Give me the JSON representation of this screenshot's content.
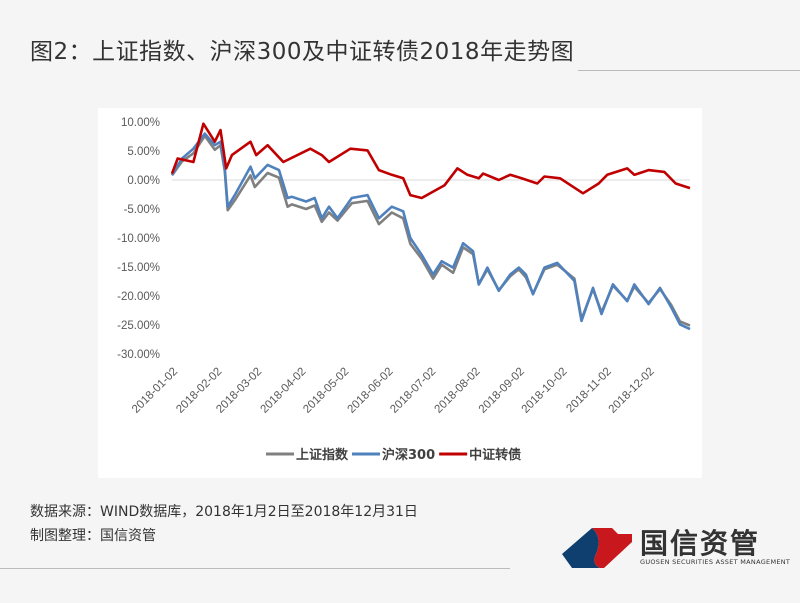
{
  "title": "图2：上证指数、沪深300及中证转债2018年走势图",
  "source_line": "数据来源：WIND数据库，2018年1月2日至2018年12月31日",
  "made_by_line": "制图整理：国信资管",
  "logo": {
    "name": "国信资管",
    "subtitle": "GUOSEN SECURITIES ASSET MANAGEMENT",
    "colors": [
      "#0f3f6e",
      "#c9171e"
    ]
  },
  "chart_data": {
    "type": "line",
    "xlabel": "",
    "ylabel": "",
    "xlim": [
      "2018-01-02",
      "2018-12-31"
    ],
    "ylim": [
      -30,
      10
    ],
    "y_ticks": [
      "10.00%",
      "5.00%",
      "0.00%",
      "-5.00%",
      "-10.00%",
      "-15.00%",
      "-20.00%",
      "-25.00%",
      "-30.00%"
    ],
    "y_tick_values": [
      10,
      5,
      0,
      -5,
      -10,
      -15,
      -20,
      -25,
      -30
    ],
    "x_ticks": [
      "2018-01-02",
      "2018-02-02",
      "2018-03-02",
      "2018-04-02",
      "2018-05-02",
      "2018-06-02",
      "2018-07-02",
      "2018-08-02",
      "2018-09-02",
      "2018-10-02",
      "2018-11-02",
      "2018-12-02"
    ],
    "grid": false,
    "zero_line": true,
    "legend_placement": "bottom",
    "series": [
      {
        "name": "上证指数",
        "color": "#808080",
        "points": [
          [
            "2018-01-02",
            0.8
          ],
          [
            "2018-01-09",
            3.2
          ],
          [
            "2018-01-17",
            4.6
          ],
          [
            "2018-01-25",
            7.6
          ],
          [
            "2018-02-01",
            5.2
          ],
          [
            "2018-02-05",
            6.0
          ],
          [
            "2018-02-08",
            1.5
          ],
          [
            "2018-02-10",
            -5.2
          ],
          [
            "2018-02-15",
            -3.5
          ],
          [
            "2018-02-26",
            0.8
          ],
          [
            "2018-03-01",
            -1.2
          ],
          [
            "2018-03-10",
            1.2
          ],
          [
            "2018-03-18",
            0.4
          ],
          [
            "2018-03-24",
            -4.6
          ],
          [
            "2018-03-27",
            -4.2
          ],
          [
            "2018-04-06",
            -5.0
          ],
          [
            "2018-04-12",
            -4.4
          ],
          [
            "2018-04-17",
            -7.2
          ],
          [
            "2018-04-22",
            -5.6
          ],
          [
            "2018-04-28",
            -7.0
          ],
          [
            "2018-05-08",
            -4.0
          ],
          [
            "2018-05-19",
            -3.6
          ],
          [
            "2018-05-27",
            -7.6
          ],
          [
            "2018-06-05",
            -5.6
          ],
          [
            "2018-06-13",
            -6.6
          ],
          [
            "2018-06-18",
            -11.0
          ],
          [
            "2018-06-26",
            -13.6
          ],
          [
            "2018-07-04",
            -17.0
          ],
          [
            "2018-07-10",
            -14.6
          ],
          [
            "2018-07-18",
            -16.0
          ],
          [
            "2018-07-25",
            -11.6
          ],
          [
            "2018-08-01",
            -12.8
          ],
          [
            "2018-08-05",
            -18.0
          ],
          [
            "2018-08-11",
            -15.4
          ],
          [
            "2018-08-19",
            -19.0
          ],
          [
            "2018-08-27",
            -16.6
          ],
          [
            "2018-09-02",
            -15.4
          ],
          [
            "2018-09-07",
            -16.8
          ],
          [
            "2018-09-12",
            -19.6
          ],
          [
            "2018-09-20",
            -15.4
          ],
          [
            "2018-09-29",
            -14.6
          ],
          [
            "2018-10-11",
            -17.0
          ],
          [
            "2018-10-16",
            -24.0
          ],
          [
            "2018-10-24",
            -18.8
          ],
          [
            "2018-10-30",
            -22.8
          ],
          [
            "2018-11-07",
            -18.2
          ],
          [
            "2018-11-17",
            -20.8
          ],
          [
            "2018-11-22",
            -18.4
          ],
          [
            "2018-12-02",
            -21.2
          ],
          [
            "2018-12-10",
            -18.8
          ],
          [
            "2018-12-18",
            -21.6
          ],
          [
            "2018-12-24",
            -24.4
          ],
          [
            "2018-12-31",
            -25.1
          ]
        ]
      },
      {
        "name": "沪深300",
        "color": "#4f81bd",
        "points": [
          [
            "2018-01-02",
            0.9
          ],
          [
            "2018-01-09",
            3.7
          ],
          [
            "2018-01-17",
            5.4
          ],
          [
            "2018-01-25",
            8.0
          ],
          [
            "2018-02-01",
            6.0
          ],
          [
            "2018-02-05",
            6.6
          ],
          [
            "2018-02-08",
            2.0
          ],
          [
            "2018-02-10",
            -4.6
          ],
          [
            "2018-02-15",
            -2.6
          ],
          [
            "2018-02-26",
            2.3
          ],
          [
            "2018-03-01",
            0.3
          ],
          [
            "2018-03-10",
            2.6
          ],
          [
            "2018-03-18",
            1.7
          ],
          [
            "2018-03-24",
            -3.1
          ],
          [
            "2018-03-27",
            -2.9
          ],
          [
            "2018-04-06",
            -3.7
          ],
          [
            "2018-04-12",
            -3.1
          ],
          [
            "2018-04-17",
            -6.6
          ],
          [
            "2018-04-22",
            -4.6
          ],
          [
            "2018-04-28",
            -6.6
          ],
          [
            "2018-05-08",
            -3.1
          ],
          [
            "2018-05-19",
            -2.6
          ],
          [
            "2018-05-27",
            -6.6
          ],
          [
            "2018-06-05",
            -4.6
          ],
          [
            "2018-06-13",
            -5.4
          ],
          [
            "2018-06-18",
            -10.0
          ],
          [
            "2018-06-26",
            -12.9
          ],
          [
            "2018-07-04",
            -16.3
          ],
          [
            "2018-07-10",
            -14.0
          ],
          [
            "2018-07-18",
            -15.1
          ],
          [
            "2018-07-25",
            -10.9
          ],
          [
            "2018-08-01",
            -12.3
          ],
          [
            "2018-08-05",
            -18.0
          ],
          [
            "2018-08-11",
            -15.1
          ],
          [
            "2018-08-19",
            -19.1
          ],
          [
            "2018-08-27",
            -16.3
          ],
          [
            "2018-09-02",
            -15.1
          ],
          [
            "2018-09-07",
            -16.3
          ],
          [
            "2018-09-12",
            -19.7
          ],
          [
            "2018-09-20",
            -15.1
          ],
          [
            "2018-09-29",
            -14.3
          ],
          [
            "2018-10-11",
            -17.4
          ],
          [
            "2018-10-16",
            -24.3
          ],
          [
            "2018-10-24",
            -18.6
          ],
          [
            "2018-10-30",
            -23.1
          ],
          [
            "2018-11-07",
            -18.0
          ],
          [
            "2018-11-17",
            -20.9
          ],
          [
            "2018-11-22",
            -18.0
          ],
          [
            "2018-12-02",
            -21.4
          ],
          [
            "2018-12-10",
            -18.6
          ],
          [
            "2018-12-18",
            -22.0
          ],
          [
            "2018-12-24",
            -24.9
          ],
          [
            "2018-12-31",
            -25.7
          ]
        ]
      },
      {
        "name": "中证转债",
        "color": "#c00000",
        "points": [
          [
            "2018-01-02",
            1.1
          ],
          [
            "2018-01-06",
            3.7
          ],
          [
            "2018-01-17",
            3.1
          ],
          [
            "2018-01-24",
            9.7
          ],
          [
            "2018-02-01",
            6.6
          ],
          [
            "2018-02-05",
            8.6
          ],
          [
            "2018-02-09",
            2.0
          ],
          [
            "2018-02-13",
            4.3
          ],
          [
            "2018-02-26",
            6.6
          ],
          [
            "2018-03-02",
            4.3
          ],
          [
            "2018-03-10",
            6.0
          ],
          [
            "2018-03-21",
            3.1
          ],
          [
            "2018-04-09",
            5.4
          ],
          [
            "2018-04-17",
            4.3
          ],
          [
            "2018-04-22",
            3.1
          ],
          [
            "2018-05-07",
            5.4
          ],
          [
            "2018-05-19",
            5.1
          ],
          [
            "2018-05-27",
            1.7
          ],
          [
            "2018-06-05",
            0.9
          ],
          [
            "2018-06-13",
            0.3
          ],
          [
            "2018-06-18",
            -2.6
          ],
          [
            "2018-06-26",
            -3.1
          ],
          [
            "2018-07-04",
            -2.0
          ],
          [
            "2018-07-12",
            -0.9
          ],
          [
            "2018-07-21",
            2.0
          ],
          [
            "2018-07-28",
            0.9
          ],
          [
            "2018-08-05",
            0.3
          ],
          [
            "2018-08-08",
            1.1
          ],
          [
            "2018-08-19",
            0.0
          ],
          [
            "2018-08-27",
            0.9
          ],
          [
            "2018-09-04",
            0.3
          ],
          [
            "2018-09-15",
            -0.6
          ],
          [
            "2018-09-20",
            0.6
          ],
          [
            "2018-10-01",
            0.3
          ],
          [
            "2018-10-17",
            -2.3
          ],
          [
            "2018-10-28",
            -0.6
          ],
          [
            "2018-11-03",
            0.9
          ],
          [
            "2018-11-17",
            2.0
          ],
          [
            "2018-11-22",
            0.9
          ],
          [
            "2018-12-02",
            1.7
          ],
          [
            "2018-12-13",
            1.4
          ],
          [
            "2018-12-21",
            -0.6
          ],
          [
            "2018-12-31",
            -1.4
          ]
        ]
      }
    ]
  }
}
